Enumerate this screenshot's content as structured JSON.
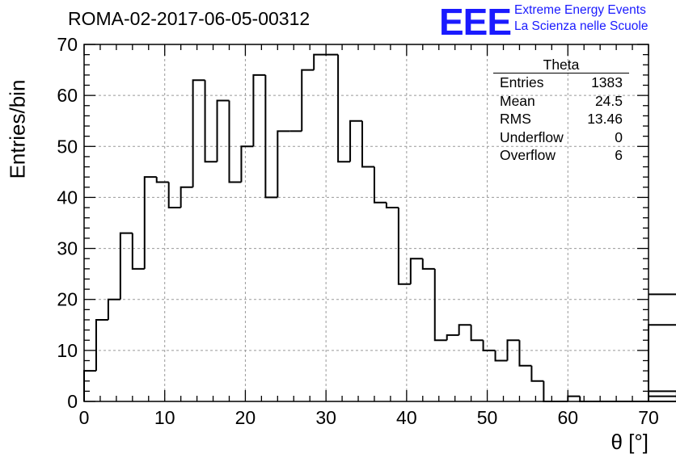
{
  "plot_title": "ROMA-02-2017-06-05-00312",
  "logo": {
    "text": "EEE",
    "line1": "Extreme Energy Events",
    "line2": "La Scienza nelle Scuole",
    "color": "#1a1aff"
  },
  "stats_box": {
    "title": "Theta",
    "rows": [
      {
        "label": "Entries",
        "value": "1383"
      },
      {
        "label": "Mean",
        "value": "24.5"
      },
      {
        "label": "RMS",
        "value": "13.46"
      },
      {
        "label": "Underflow",
        "value": "0"
      },
      {
        "label": "Overflow",
        "value": "6"
      }
    ]
  },
  "chart_data": {
    "type": "bar",
    "histogram": true,
    "title": "ROMA-02-2017-06-05-00312",
    "xlabel": "θ [°]",
    "ylabel": "Entries/bin",
    "xlim": [
      0,
      70
    ],
    "ylim": [
      0,
      70
    ],
    "bin_width": 1.5,
    "bin_edges_start": 0,
    "values": [
      6,
      16,
      20,
      33,
      26,
      44,
      43,
      38,
      42,
      63,
      47,
      59,
      43,
      50,
      64,
      40,
      53,
      53,
      65,
      68,
      68,
      47,
      55,
      46,
      39,
      38,
      23,
      28,
      26,
      12,
      13,
      15,
      12,
      10,
      8,
      12,
      7,
      4,
      0,
      0,
      1,
      0,
      0,
      0,
      0,
      0,
      0,
      0,
      0,
      2,
      1,
      0,
      0,
      0,
      0,
      0,
      0,
      0,
      0,
      0,
      21,
      15
    ],
    "x_ticks": [
      0,
      10,
      20,
      30,
      40,
      50,
      60,
      70
    ],
    "y_ticks": [
      0,
      10,
      20,
      30,
      40,
      50,
      60,
      70
    ],
    "grid": true,
    "line_color": "#000000"
  }
}
